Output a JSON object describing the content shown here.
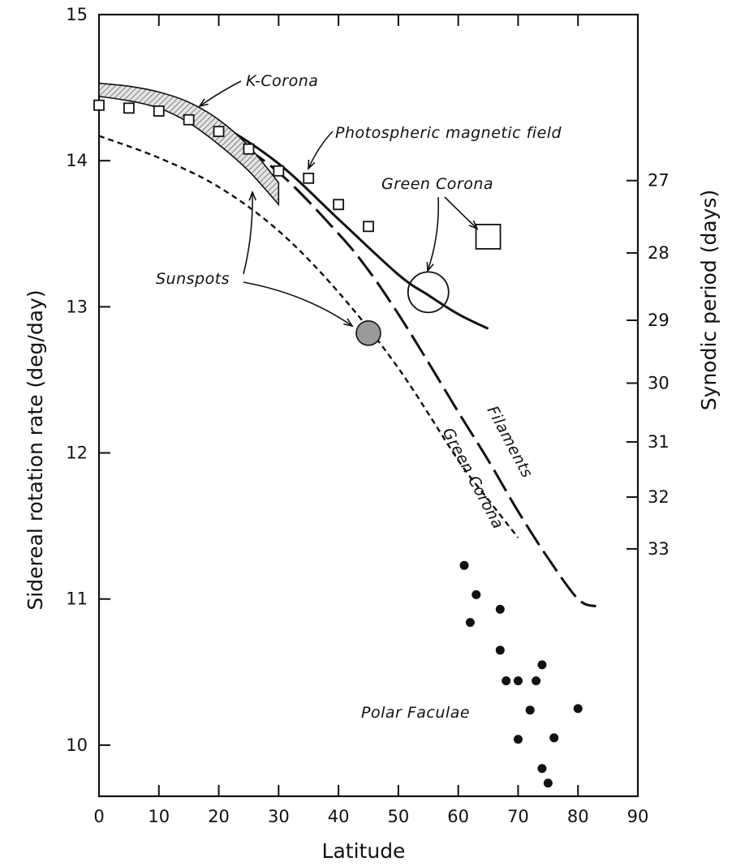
{
  "chart_data": {
    "type": "line",
    "title": "",
    "xlabel": "Latitude",
    "ylabel": "Sidereal rotation rate (deg/day)",
    "ylabel_right": "Synodic period (days)",
    "xlim": [
      0,
      90
    ],
    "ylim": [
      9.65,
      15.0
    ],
    "x_ticks": [
      0,
      10,
      20,
      30,
      40,
      50,
      60,
      70,
      80,
      90
    ],
    "y_ticks": [
      10,
      11,
      12,
      13,
      14,
      15
    ],
    "right_ticks": [
      27,
      28,
      29,
      30,
      31,
      32,
      33
    ],
    "grid": false,
    "series": [
      {
        "name": "K-Corona",
        "style": "solid-thick",
        "x": [
          0,
          10,
          20,
          30,
          40,
          50,
          55,
          60,
          65
        ],
        "y": [
          14.48,
          14.43,
          14.25,
          13.98,
          13.6,
          13.22,
          13.08,
          12.95,
          12.85
        ]
      },
      {
        "name": "Filaments",
        "style": "long-dash",
        "x": [
          0,
          10,
          20,
          30,
          40,
          45,
          50,
          55,
          60,
          65,
          70,
          75,
          80,
          83
        ],
        "y": [
          14.48,
          14.4,
          14.2,
          13.92,
          13.5,
          13.25,
          12.95,
          12.62,
          12.28,
          11.95,
          11.6,
          11.28,
          11.0,
          10.95
        ]
      },
      {
        "name": "Green Corona",
        "style": "short-dash",
        "x": [
          0,
          10,
          20,
          30,
          40,
          50,
          60,
          65,
          70
        ],
        "y": [
          14.17,
          14.02,
          13.82,
          13.52,
          13.1,
          12.58,
          11.95,
          11.68,
          11.42
        ]
      },
      {
        "name": "Sunspots",
        "style": "hatched-band",
        "x": [
          0,
          5,
          10,
          15,
          20,
          25,
          30
        ],
        "upper": [
          14.53,
          14.51,
          14.47,
          14.4,
          14.28,
          14.1,
          13.85
        ],
        "lower": [
          14.44,
          14.41,
          14.36,
          14.26,
          14.11,
          13.93,
          13.7
        ]
      },
      {
        "name": "Photospheric magnetic field",
        "style": "open-square",
        "x": [
          0,
          5,
          10,
          15,
          20,
          25,
          30,
          35,
          40,
          45
        ],
        "y": [
          14.38,
          14.36,
          14.34,
          14.28,
          14.2,
          14.08,
          13.93,
          13.88,
          13.7,
          13.55
        ]
      },
      {
        "name": "Polar Faculae",
        "style": "filled-dot",
        "x": [
          61,
          62,
          63,
          67,
          67,
          68,
          70,
          70,
          72,
          73,
          74,
          74,
          75,
          76,
          80
        ],
        "y": [
          11.23,
          10.84,
          11.03,
          10.93,
          10.65,
          10.44,
          10.44,
          10.04,
          10.24,
          10.44,
          10.55,
          9.84,
          9.74,
          10.05,
          10.25
        ]
      }
    ],
    "markers": [
      {
        "name": "Sunspots (high latitude)",
        "shape": "filled-circle",
        "x": 45,
        "y": 12.82
      },
      {
        "name": "Green Corona",
        "shape": "open-circle",
        "x": 55,
        "y": 13.1
      },
      {
        "name": "Green Corona",
        "shape": "open-square",
        "x": 65,
        "y": 13.48
      }
    ],
    "annotations": [
      {
        "text": "K-Corona"
      },
      {
        "text": "Photospheric magnetic field"
      },
      {
        "text": "Green Corona"
      },
      {
        "text": "Sunspots"
      },
      {
        "text": "Filaments"
      },
      {
        "text": "Green Corona"
      },
      {
        "text": "Polar Faculae"
      }
    ]
  }
}
